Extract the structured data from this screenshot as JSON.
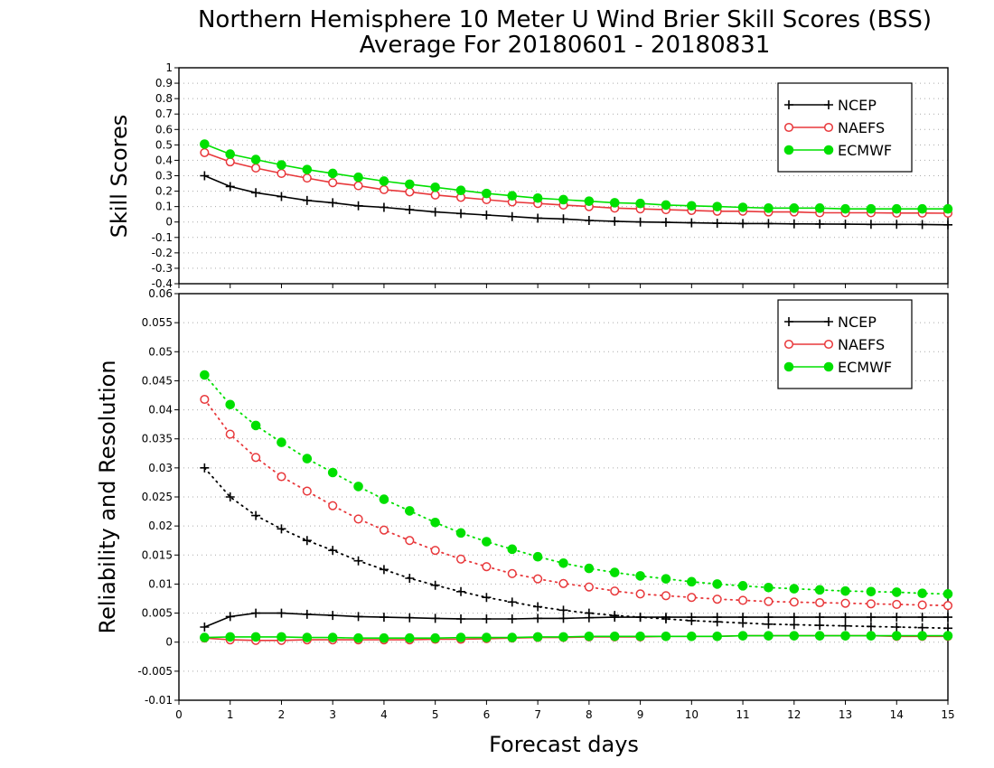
{
  "title": "Northern Hemisphere 10 Meter U Wind Brier Skill Scores (BSS)",
  "subtitle": "Average For 20180601 - 20180831",
  "colors": {
    "NCEP": "#000000",
    "NAEFS": "#e8383b",
    "ECMWF": "#00e000",
    "grid": "#aaaaaa"
  },
  "chart_data": [
    {
      "type": "line",
      "ylabel": "Skill Scores",
      "xlabel": "",
      "xlim": [
        0,
        15
      ],
      "ylim": [
        -0.4,
        1
      ],
      "yticks": [
        "-0.4",
        "-0.3",
        "-0.2",
        "-0.1",
        "0",
        "0.1",
        "0.2",
        "0.3",
        "0.4",
        "0.5",
        "0.6",
        "0.7",
        "0.8",
        "0.9",
        "1"
      ],
      "x": [
        0.5,
        1,
        1.5,
        2,
        2.5,
        3,
        3.5,
        4,
        4.5,
        5,
        5.5,
        6,
        6.5,
        7,
        7.5,
        8,
        8.5,
        9,
        9.5,
        10,
        10.5,
        11,
        11.5,
        12,
        12.5,
        13,
        13.5,
        14,
        14.5,
        15
      ],
      "legend": {
        "position": "top-right",
        "entries": [
          "NCEP",
          "NAEFS",
          "ECMWF"
        ]
      },
      "series": [
        {
          "name": "NCEP",
          "marker": "plus",
          "style": "solid",
          "values": [
            0.3,
            0.23,
            0.19,
            0.165,
            0.14,
            0.125,
            0.105,
            0.095,
            0.08,
            0.065,
            0.055,
            0.045,
            0.035,
            0.025,
            0.02,
            0.01,
            0.005,
            0.0,
            -0.002,
            -0.005,
            -0.008,
            -0.01,
            -0.01,
            -0.012,
            -0.013,
            -0.014,
            -0.015,
            -0.015,
            -0.016,
            -0.018
          ]
        },
        {
          "name": "NAEFS",
          "marker": "open-circle",
          "style": "solid",
          "values": [
            0.45,
            0.39,
            0.35,
            0.315,
            0.285,
            0.255,
            0.235,
            0.21,
            0.195,
            0.175,
            0.16,
            0.145,
            0.13,
            0.12,
            0.11,
            0.1,
            0.09,
            0.085,
            0.08,
            0.075,
            0.07,
            0.07,
            0.065,
            0.065,
            0.06,
            0.06,
            0.06,
            0.058,
            0.058,
            0.057
          ]
        },
        {
          "name": "ECMWF",
          "marker": "filled-circle",
          "style": "solid",
          "values": [
            0.505,
            0.44,
            0.405,
            0.37,
            0.34,
            0.315,
            0.29,
            0.265,
            0.245,
            0.225,
            0.205,
            0.185,
            0.17,
            0.155,
            0.145,
            0.135,
            0.125,
            0.12,
            0.11,
            0.105,
            0.1,
            0.095,
            0.09,
            0.09,
            0.09,
            0.085,
            0.085,
            0.085,
            0.085,
            0.085
          ]
        }
      ]
    },
    {
      "type": "line",
      "ylabel": "Reliability and Resolution",
      "xlabel": "Forecast days",
      "xlim": [
        0,
        15
      ],
      "ylim": [
        -0.01,
        0.06
      ],
      "yticks": [
        "-0.01",
        "-0.005",
        "0",
        "0.005",
        "0.01",
        "0.015",
        "0.02",
        "0.025",
        "0.03",
        "0.035",
        "0.04",
        "0.045",
        "0.05",
        "0.055",
        "0.06"
      ],
      "xticks": [
        "0",
        "1",
        "2",
        "3",
        "4",
        "5",
        "6",
        "7",
        "8",
        "9",
        "10",
        "11",
        "12",
        "13",
        "14",
        "15"
      ],
      "x": [
        0.5,
        1,
        1.5,
        2,
        2.5,
        3,
        3.5,
        4,
        4.5,
        5,
        5.5,
        6,
        6.5,
        7,
        7.5,
        8,
        8.5,
        9,
        9.5,
        10,
        10.5,
        11,
        11.5,
        12,
        12.5,
        13,
        13.5,
        14,
        14.5,
        15
      ],
      "legend": {
        "position": "top-right",
        "entries": [
          "NCEP",
          "NAEFS",
          "ECMWF"
        ]
      },
      "series": [
        {
          "name": "NCEP",
          "marker": "plus",
          "style": "dotted",
          "values": [
            0.03,
            0.025,
            0.0218,
            0.0195,
            0.0175,
            0.0158,
            0.014,
            0.0125,
            0.011,
            0.0098,
            0.0087,
            0.0077,
            0.0069,
            0.0061,
            0.0055,
            0.005,
            0.0046,
            0.0043,
            0.004,
            0.0037,
            0.0035,
            0.0033,
            0.0031,
            0.003,
            0.0029,
            0.0028,
            0.0027,
            0.0026,
            0.0025,
            0.0024
          ]
        },
        {
          "name": "NAEFS",
          "marker": "open-circle",
          "style": "dotted",
          "values": [
            0.0418,
            0.0358,
            0.0318,
            0.0285,
            0.026,
            0.0235,
            0.0212,
            0.0193,
            0.0175,
            0.0158,
            0.0143,
            0.013,
            0.0118,
            0.0109,
            0.0101,
            0.0095,
            0.0088,
            0.0083,
            0.008,
            0.0077,
            0.0074,
            0.0072,
            0.007,
            0.0069,
            0.0068,
            0.0067,
            0.0066,
            0.0065,
            0.0064,
            0.0063
          ]
        },
        {
          "name": "ECMWF",
          "marker": "filled-circle",
          "style": "dotted",
          "values": [
            0.046,
            0.0409,
            0.0373,
            0.0344,
            0.0316,
            0.0292,
            0.0268,
            0.0246,
            0.0226,
            0.0206,
            0.0188,
            0.0173,
            0.016,
            0.0147,
            0.0136,
            0.0127,
            0.012,
            0.0114,
            0.0109,
            0.0104,
            0.01,
            0.0097,
            0.0094,
            0.0092,
            0.009,
            0.0088,
            0.0087,
            0.0086,
            0.0084,
            0.0083
          ]
        },
        {
          "name": "NCEP",
          "marker": "plus",
          "style": "solid",
          "values": [
            0.0026,
            0.0044,
            0.005,
            0.005,
            0.0048,
            0.0046,
            0.0044,
            0.0043,
            0.0042,
            0.0041,
            0.004,
            0.004,
            0.004,
            0.0041,
            0.0041,
            0.0042,
            0.0043,
            0.0043,
            0.0043,
            0.0043,
            0.0043,
            0.0043,
            0.0043,
            0.0043,
            0.0043,
            0.0043,
            0.0043,
            0.0043,
            0.0043,
            0.0043
          ]
        },
        {
          "name": "NAEFS",
          "marker": "open-circle",
          "style": "solid",
          "values": [
            0.0007,
            0.0004,
            0.0003,
            0.0003,
            0.0004,
            0.0004,
            0.0004,
            0.0004,
            0.0004,
            0.0005,
            0.0005,
            0.0006,
            0.0007,
            0.0008,
            0.0008,
            0.0009,
            0.0009,
            0.0009,
            0.001,
            0.001,
            0.001,
            0.0011,
            0.0011,
            0.0011,
            0.0011,
            0.0011,
            0.0011,
            0.001,
            0.001,
            0.001
          ]
        },
        {
          "name": "ECMWF",
          "marker": "filled-circle",
          "style": "solid",
          "values": [
            0.0008,
            0.0009,
            0.0009,
            0.0009,
            0.0008,
            0.0008,
            0.0007,
            0.0007,
            0.0007,
            0.0007,
            0.0008,
            0.0008,
            0.0008,
            0.0009,
            0.0009,
            0.001,
            0.001,
            0.001,
            0.001,
            0.001,
            0.001,
            0.0011,
            0.0011,
            0.0011,
            0.0011,
            0.0011,
            0.0011,
            0.0011,
            0.0011,
            0.0011
          ]
        }
      ]
    }
  ]
}
